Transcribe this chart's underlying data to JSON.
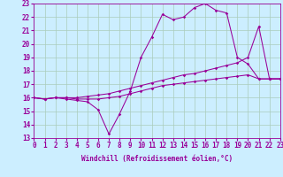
{
  "xlabel": "Windchill (Refroidissement éolien,°C)",
  "bg_color": "#cceeff",
  "grid_color": "#aaccbb",
  "line_color": "#990099",
  "xmin": 0,
  "xmax": 23,
  "ymin": 13,
  "ymax": 23,
  "curve1_x": [
    0,
    1,
    2,
    3,
    4,
    5,
    6,
    7,
    8,
    9,
    10,
    11,
    12,
    13,
    14,
    15,
    16,
    17,
    18,
    19,
    20,
    21,
    22,
    23
  ],
  "curve1_y": [
    16.0,
    15.9,
    16.0,
    15.9,
    15.8,
    15.7,
    15.1,
    13.3,
    14.8,
    16.5,
    19.0,
    20.5,
    22.2,
    21.8,
    22.0,
    22.7,
    23.0,
    22.5,
    22.3,
    19.0,
    18.5,
    17.4,
    17.4,
    17.4
  ],
  "curve2_x": [
    0,
    1,
    2,
    3,
    4,
    5,
    6,
    7,
    8,
    9,
    10,
    11,
    12,
    13,
    14,
    15,
    16,
    17,
    18,
    19,
    20,
    21,
    22,
    23
  ],
  "curve2_y": [
    16.0,
    15.9,
    16.0,
    16.0,
    16.0,
    16.1,
    16.2,
    16.3,
    16.5,
    16.7,
    16.9,
    17.1,
    17.3,
    17.5,
    17.7,
    17.8,
    18.0,
    18.2,
    18.4,
    18.6,
    19.0,
    21.3,
    17.4,
    17.4
  ],
  "curve3_x": [
    0,
    1,
    2,
    3,
    4,
    5,
    6,
    7,
    8,
    9,
    10,
    11,
    12,
    13,
    14,
    15,
    16,
    17,
    18,
    19,
    20,
    21,
    22,
    23
  ],
  "curve3_y": [
    16.0,
    15.9,
    16.0,
    16.0,
    15.9,
    15.9,
    15.9,
    16.0,
    16.1,
    16.3,
    16.5,
    16.7,
    16.9,
    17.0,
    17.1,
    17.2,
    17.3,
    17.4,
    17.5,
    17.6,
    17.7,
    17.4,
    17.4,
    17.4
  ],
  "yticks": [
    13,
    14,
    15,
    16,
    17,
    18,
    19,
    20,
    21,
    22,
    23
  ],
  "xticks": [
    0,
    1,
    2,
    3,
    4,
    5,
    6,
    7,
    8,
    9,
    10,
    11,
    12,
    13,
    14,
    15,
    16,
    17,
    18,
    19,
    20,
    21,
    22,
    23
  ],
  "tick_fontsize": 5.5,
  "xlabel_fontsize": 5.5
}
